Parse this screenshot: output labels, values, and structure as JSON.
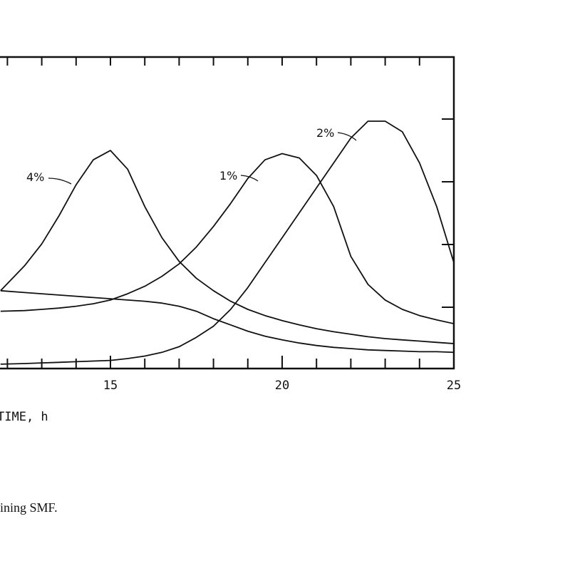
{
  "chart_data": {
    "type": "line",
    "xlabel": "TIME, h",
    "caption": "ining SMF.",
    "x": [
      11.8,
      12.5,
      13,
      13.5,
      14,
      14.5,
      15,
      15.5,
      16,
      16.5,
      17,
      17.5,
      18,
      18.5,
      19,
      19.5,
      20,
      20.5,
      21,
      21.5,
      22,
      22.5,
      23,
      23.5,
      24,
      24.5,
      25
    ],
    "series": [
      {
        "name": "4%",
        "color": "#111",
        "values": [
          1.25,
          1.65,
          2.0,
          2.45,
          2.95,
          3.35,
          3.5,
          3.2,
          2.6,
          2.1,
          1.72,
          1.45,
          1.25,
          1.08,
          0.95,
          0.85,
          0.77,
          0.7,
          0.64,
          0.59,
          0.55,
          0.51,
          0.48,
          0.46,
          0.44,
          0.42,
          0.4
        ]
      },
      {
        "name": "1%",
        "color": "#111",
        "values": [
          0.92,
          0.93,
          0.95,
          0.97,
          1.0,
          1.04,
          1.1,
          1.2,
          1.32,
          1.48,
          1.68,
          1.95,
          2.28,
          2.65,
          3.05,
          3.35,
          3.45,
          3.38,
          3.1,
          2.6,
          1.8,
          1.35,
          1.1,
          0.95,
          0.85,
          0.78,
          0.72
        ]
      },
      {
        "name": "2%",
        "color": "#111",
        "values": [
          0.07,
          0.08,
          0.09,
          0.1,
          0.11,
          0.12,
          0.13,
          0.16,
          0.2,
          0.26,
          0.35,
          0.5,
          0.68,
          0.95,
          1.3,
          1.7,
          2.1,
          2.5,
          2.9,
          3.3,
          3.7,
          3.97,
          3.97,
          3.8,
          3.3,
          2.6,
          1.7
        ]
      },
      {
        "color": "#111",
        "values": [
          1.25,
          1.22,
          1.2,
          1.18,
          1.16,
          1.14,
          1.12,
          1.1,
          1.08,
          1.05,
          1.0,
          0.92,
          0.8,
          0.7,
          0.6,
          0.52,
          0.46,
          0.41,
          0.37,
          0.34,
          0.32,
          0.3,
          0.29,
          0.28,
          0.27,
          0.27,
          0.26
        ]
      }
    ],
    "xlim": [
      11.8,
      25
    ],
    "ylim": [
      0,
      5
    ],
    "xticks": [
      15,
      20,
      25
    ]
  }
}
